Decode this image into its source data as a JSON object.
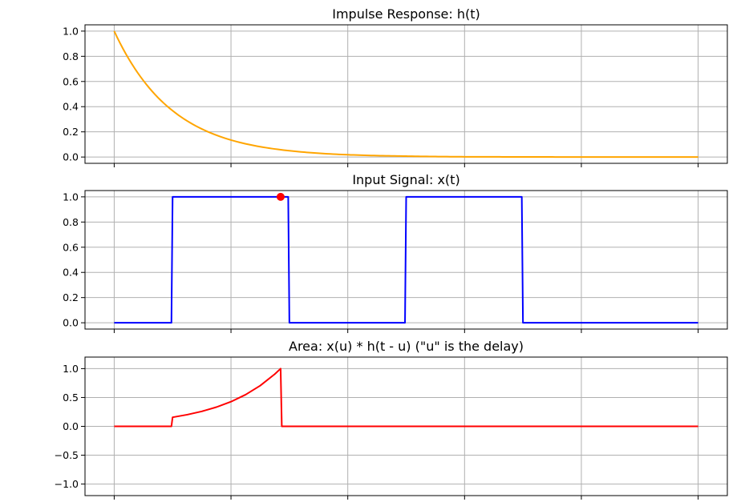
{
  "colors": {
    "impulse_response": "#ffa500",
    "input_signal": "#0000ff",
    "area": "#ff0000",
    "marker": "#ff0000",
    "grid": "#b0b0b0"
  },
  "chart_data": [
    {
      "type": "line",
      "title": "Impulse Response: h(t)",
      "xlabel": "",
      "ylabel": "",
      "xlim": [
        -0.5,
        10.5
      ],
      "ylim": [
        -0.05,
        1.05
      ],
      "xticks": [
        0,
        2,
        4,
        6,
        8,
        10
      ],
      "xtick_labels_visible": false,
      "yticks": [
        0.0,
        0.2,
        0.4,
        0.6,
        0.8,
        1.0
      ],
      "ytick_labels": [
        "0.0",
        "0.2",
        "0.4",
        "0.6",
        "0.8",
        "1.0"
      ],
      "grid": true,
      "series": [
        {
          "color": "#ffa500",
          "x": [
            0,
            0.25,
            0.5,
            0.75,
            1,
            1.5,
            2,
            2.5,
            3,
            3.5,
            4,
            5,
            6,
            7,
            8,
            9,
            10
          ],
          "y": [
            1.0,
            0.779,
            0.607,
            0.472,
            0.368,
            0.223,
            0.135,
            0.082,
            0.05,
            0.03,
            0.018,
            0.007,
            0.002,
            0.001,
            0.0,
            0.0,
            0.0
          ]
        }
      ]
    },
    {
      "type": "line",
      "title": "Input Signal: x(t)",
      "xlabel": "",
      "ylabel": "",
      "xlim": [
        -0.5,
        10.5
      ],
      "ylim": [
        -0.05,
        1.05
      ],
      "xticks": [
        0,
        2,
        4,
        6,
        8,
        10
      ],
      "xtick_labels_visible": false,
      "yticks": [
        0.0,
        0.2,
        0.4,
        0.6,
        0.8,
        1.0
      ],
      "ytick_labels": [
        "0.0",
        "0.2",
        "0.4",
        "0.6",
        "0.8",
        "1.0"
      ],
      "grid": true,
      "series": [
        {
          "color": "#0000ff",
          "x": [
            0,
            0.98,
            1.0,
            2.98,
            3.0,
            4.98,
            5.0,
            6.98,
            7.0,
            10
          ],
          "y": [
            0,
            0,
            1,
            1,
            0,
            0,
            1,
            1,
            0,
            0
          ]
        }
      ],
      "markers": [
        {
          "x": 2.85,
          "y": 1.0,
          "color": "#ff0000"
        }
      ]
    },
    {
      "type": "line",
      "title": "Area: x(u) * h(t - u)  (\"u\" is the delay)",
      "xlabel": "",
      "ylabel": "",
      "xlim": [
        -0.5,
        10.5
      ],
      "ylim": [
        -1.2,
        1.2
      ],
      "xticks": [
        0,
        2,
        4,
        6,
        8,
        10
      ],
      "xtick_labels_visible": false,
      "yticks": [
        -1.0,
        -0.5,
        0.0,
        0.5,
        1.0
      ],
      "ytick_labels": [
        "−1.0",
        "−0.5",
        "0.0",
        "0.5",
        "1.0"
      ],
      "grid": true,
      "series": [
        {
          "color": "#ff0000",
          "x": [
            0,
            0.98,
            1.0,
            1.25,
            1.5,
            1.75,
            2.0,
            2.25,
            2.5,
            2.75,
            2.85,
            2.87,
            10
          ],
          "y": [
            0,
            0,
            0.157,
            0.202,
            0.259,
            0.333,
            0.427,
            0.549,
            0.705,
            0.905,
            1.0,
            0,
            0
          ]
        }
      ]
    }
  ]
}
